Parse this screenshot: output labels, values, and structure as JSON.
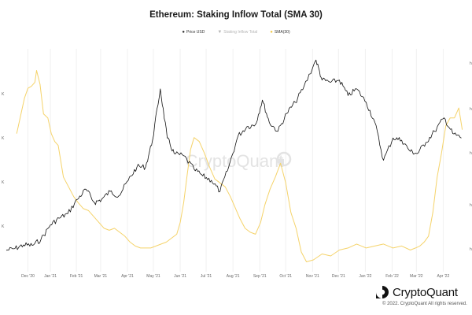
{
  "chart_data": {
    "type": "line",
    "title": "Ethereum: Staking Inflow Total (SMA 30)",
    "legend": [
      {
        "label": "Price USD",
        "color": "#111111",
        "visible": true
      },
      {
        "label": "Staking Inflow Total",
        "color": "#c8c8c8",
        "visible": false
      },
      {
        "label": "SMA(30)",
        "color": "#f5d36a",
        "visible": true
      }
    ],
    "x_ticks": [
      "Dec '20",
      "Jan '21",
      "Feb '21",
      "Mar '21",
      "Apr '21",
      "May '21",
      "Jun '21",
      "Jul '21",
      "Aug '21",
      "Sep '21",
      "Oct '21",
      "Nov '21",
      "Dec '21",
      "Jan '22",
      "Feb '22",
      "Mar '22",
      "Apr '22"
    ],
    "left_ticks": [
      "K",
      "K",
      "K",
      "K"
    ],
    "right_ticks": [
      "h",
      "h",
      "h",
      "h",
      "h"
    ],
    "xlim": [
      "2020-11-15",
      "2022-04-30"
    ],
    "grid": {
      "vertical": true,
      "horizontal": false
    },
    "series": [
      {
        "name": "Price USD",
        "color": "#111111",
        "x": [
          "2020-11-15",
          "2020-11-25",
          "2020-12-05",
          "2020-12-15",
          "2020-12-25",
          "2021-01-05",
          "2021-01-15",
          "2021-01-25",
          "2021-02-05",
          "2021-02-15",
          "2021-02-25",
          "2021-03-05",
          "2021-03-15",
          "2021-03-25",
          "2021-04-05",
          "2021-04-15",
          "2021-04-25",
          "2021-05-03",
          "2021-05-12",
          "2021-05-20",
          "2021-05-28",
          "2021-06-08",
          "2021-06-20",
          "2021-06-30",
          "2021-07-10",
          "2021-07-20",
          "2021-07-30",
          "2021-08-10",
          "2021-08-20",
          "2021-08-30",
          "2021-09-07",
          "2021-09-15",
          "2021-09-25",
          "2021-10-05",
          "2021-10-15",
          "2021-10-25",
          "2021-11-08",
          "2021-11-15",
          "2021-11-25",
          "2021-12-05",
          "2021-12-15",
          "2021-12-25",
          "2022-01-05",
          "2022-01-15",
          "2022-01-25",
          "2022-02-05",
          "2022-02-15",
          "2022-02-25",
          "2022-03-05",
          "2022-03-15",
          "2022-03-25",
          "2022-04-05",
          "2022-04-15",
          "2022-04-25"
        ],
        "y": [
          480,
          520,
          600,
          590,
          720,
          1050,
          1200,
          1300,
          1620,
          1850,
          1550,
          1620,
          1800,
          1700,
          2050,
          2350,
          2350,
          2950,
          4100,
          3000,
          2650,
          2600,
          2300,
          2150,
          2050,
          1800,
          2350,
          3050,
          3250,
          3300,
          3850,
          3350,
          3150,
          3550,
          3800,
          4150,
          4750,
          4300,
          4250,
          4300,
          3950,
          4100,
          3800,
          3350,
          2500,
          3000,
          2950,
          2700,
          2650,
          2900,
          3150,
          3450,
          3100,
          3000
        ]
      },
      {
        "name": "SMA(30)",
        "color": "#f5d36a",
        "x": [
          "2020-11-27",
          "2020-12-02",
          "2020-12-06",
          "2020-12-10",
          "2020-12-14",
          "2020-12-18",
          "2020-12-20",
          "2020-12-24",
          "2020-12-28",
          "2021-01-02",
          "2021-01-06",
          "2021-01-10",
          "2021-01-14",
          "2021-01-20",
          "2021-01-26",
          "2021-02-01",
          "2021-02-06",
          "2021-02-12",
          "2021-02-18",
          "2021-02-24",
          "2021-03-02",
          "2021-03-08",
          "2021-03-14",
          "2021-03-20",
          "2021-03-26",
          "2021-04-01",
          "2021-04-07",
          "2021-04-13",
          "2021-04-19",
          "2021-04-25",
          "2021-05-01",
          "2021-05-07",
          "2021-05-13",
          "2021-05-19",
          "2021-05-25",
          "2021-05-31",
          "2021-06-04",
          "2021-06-08",
          "2021-06-12",
          "2021-06-16",
          "2021-06-20",
          "2021-06-26",
          "2021-07-02",
          "2021-07-08",
          "2021-07-14",
          "2021-07-20",
          "2021-07-26",
          "2021-08-01",
          "2021-08-06",
          "2021-08-12",
          "2021-08-18",
          "2021-08-24",
          "2021-08-30",
          "2021-09-05",
          "2021-09-10",
          "2021-09-16",
          "2021-09-22",
          "2021-09-28",
          "2021-10-04",
          "2021-10-10",
          "2021-10-16",
          "2021-10-22",
          "2021-10-28",
          "2021-11-05",
          "2021-11-15",
          "2021-11-25",
          "2021-12-05",
          "2021-12-15",
          "2021-12-25",
          "2022-01-05",
          "2022-01-15",
          "2022-01-25",
          "2022-02-05",
          "2022-02-15",
          "2022-02-25",
          "2022-03-03",
          "2022-03-08",
          "2022-03-13",
          "2022-03-18",
          "2022-03-23",
          "2022-03-28",
          "2022-04-02",
          "2022-04-07",
          "2022-04-12",
          "2022-04-17",
          "2022-04-22",
          "2022-04-26"
        ],
        "y": [
          0.7,
          0.8,
          0.88,
          0.93,
          0.94,
          0.96,
          1.02,
          0.95,
          0.8,
          0.78,
          0.7,
          0.66,
          0.64,
          0.48,
          0.43,
          0.38,
          0.35,
          0.32,
          0.31,
          0.28,
          0.25,
          0.22,
          0.21,
          0.22,
          0.2,
          0.18,
          0.15,
          0.13,
          0.12,
          0.12,
          0.12,
          0.13,
          0.14,
          0.15,
          0.17,
          0.19,
          0.25,
          0.35,
          0.49,
          0.62,
          0.68,
          0.66,
          0.6,
          0.53,
          0.47,
          0.45,
          0.43,
          0.38,
          0.33,
          0.27,
          0.22,
          0.2,
          0.19,
          0.25,
          0.34,
          0.42,
          0.48,
          0.55,
          0.45,
          0.3,
          0.22,
          0.1,
          0.05,
          0.06,
          0.09,
          0.08,
          0.11,
          0.12,
          0.14,
          0.12,
          0.13,
          0.14,
          0.12,
          0.13,
          0.11,
          0.12,
          0.13,
          0.15,
          0.18,
          0.3,
          0.48,
          0.6,
          0.74,
          0.78,
          0.78,
          0.83,
          0.72
        ]
      }
    ]
  },
  "watermark": "CryptoQuant",
  "brand": {
    "name": "CryptoQuant",
    "copyright": "© 2022. CryptoQuant All rights reserved."
  }
}
